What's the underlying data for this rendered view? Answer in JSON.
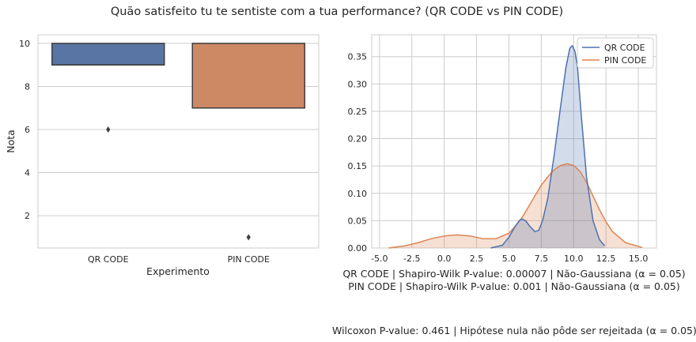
{
  "figure": {
    "title": "Quão satisfeito tu te sentiste com a tua performance? (QR CODE vs PIN CODE)",
    "notes": {
      "line1": "QR CODE | Shapiro-Wilk P-value: 0.00007 | Não-Gaussiana (α = 0.05)",
      "line2": "PIN CODE | Shapiro-Wilk P-value: 0.001 | Não-Gaussiana (α = 0.05)",
      "line3": "Wilcoxon P-value: 0.461 | Hipótese nula não pôde ser rejeitada (α = 0.05)"
    }
  },
  "chart_data": [
    {
      "type": "box",
      "xlabel": "Experimento",
      "ylabel": "Nota",
      "ylim": [
        0.5,
        10.4
      ],
      "yticks": [
        2,
        4,
        6,
        8,
        10
      ],
      "grid": true,
      "categories": [
        "QR CODE",
        "PIN CODE"
      ],
      "boxes": [
        {
          "category": "QR CODE",
          "q1": 9,
          "median": 9,
          "q3": 10,
          "whisker_low": 9,
          "whisker_high": 10,
          "outliers": [
            6
          ],
          "color": "#5875a4"
        },
        {
          "category": "PIN CODE",
          "q1": 7,
          "median": 7,
          "q3": 10,
          "whisker_low": 7,
          "whisker_high": 10,
          "outliers": [
            1
          ],
          "color": "#cc8963"
        }
      ]
    },
    {
      "type": "area",
      "xlabel": "",
      "ylabel": "",
      "xlim": [
        -5.6,
        16.4
      ],
      "ylim": [
        0,
        0.39
      ],
      "xticks": [
        -5.0,
        -2.5,
        0.0,
        2.5,
        5.0,
        7.5,
        10.0,
        12.5,
        15.0
      ],
      "yticks": [
        0.0,
        0.05,
        0.1,
        0.15,
        0.2,
        0.25,
        0.3,
        0.35
      ],
      "grid": true,
      "legend": "top-right",
      "series": [
        {
          "name": "QR CODE",
          "color": "#4c72b0",
          "x": [
            3.6,
            4.5,
            5.0,
            5.5,
            5.8,
            6.0,
            6.3,
            6.6,
            7.0,
            7.3,
            7.6,
            8.0,
            8.5,
            9.0,
            9.4,
            9.7,
            9.9,
            10.1,
            10.3,
            10.6,
            11.0,
            11.5,
            12.0,
            12.4
          ],
          "y": [
            0.0,
            0.005,
            0.02,
            0.04,
            0.05,
            0.053,
            0.05,
            0.04,
            0.03,
            0.032,
            0.05,
            0.09,
            0.17,
            0.26,
            0.33,
            0.365,
            0.37,
            0.36,
            0.33,
            0.24,
            0.13,
            0.05,
            0.015,
            0.004
          ]
        },
        {
          "name": "PIN CODE",
          "color": "#dd8452",
          "x": [
            -4.3,
            -3.0,
            -2.0,
            -1.0,
            0.0,
            1.0,
            2.0,
            3.0,
            4.0,
            5.0,
            5.5,
            6.0,
            6.5,
            7.0,
            7.5,
            8.0,
            8.5,
            9.0,
            9.5,
            10.0,
            10.5,
            11.0,
            11.5,
            12.0,
            12.5,
            13.0,
            14.0,
            15.3
          ],
          "y": [
            0.0,
            0.004,
            0.01,
            0.017,
            0.022,
            0.024,
            0.022,
            0.017,
            0.017,
            0.027,
            0.04,
            0.055,
            0.075,
            0.095,
            0.115,
            0.13,
            0.143,
            0.151,
            0.154,
            0.151,
            0.14,
            0.12,
            0.095,
            0.07,
            0.048,
            0.03,
            0.01,
            0.001
          ]
        }
      ]
    }
  ]
}
